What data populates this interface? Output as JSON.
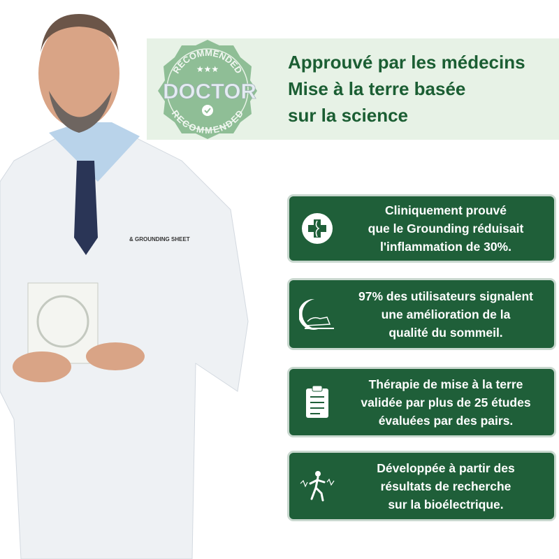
{
  "badge": {
    "top_text": "RECOMMENDED",
    "main_text": "DOCTOR",
    "bottom_text": "RECOMMENDED"
  },
  "headline": {
    "lines": [
      "Approuvé par les médecins",
      "Mise à la terre basée",
      "sur la science"
    ]
  },
  "colors": {
    "brand_green": "#1f5f39",
    "headline_green": "#1b5e33",
    "banner_bg": "#e7f2e6",
    "badge_green": "#8fbe96"
  },
  "features": [
    {
      "icon": "medical-cross-icon",
      "lines": [
        "Cliniquement prouvé",
        "que le Grounding réduisait",
        "l'inflammation de 30%."
      ]
    },
    {
      "icon": "moon-sleep-icon",
      "lines": [
        "97% des utilisateurs signalent",
        "une amélioration de la",
        "qualité du sommeil."
      ]
    },
    {
      "icon": "clipboard-icon",
      "lines": [
        "Thérapie de mise à la terre",
        "validée par plus de 25 études",
        "évaluées par des pairs."
      ]
    },
    {
      "icon": "bioelectric-figure-icon",
      "lines": [
        "Développée à partir des",
        "résultats de recherche",
        "sur la bioélectrique."
      ]
    }
  ],
  "photo": {
    "coat_logo": "GROUNDING SHEET"
  }
}
